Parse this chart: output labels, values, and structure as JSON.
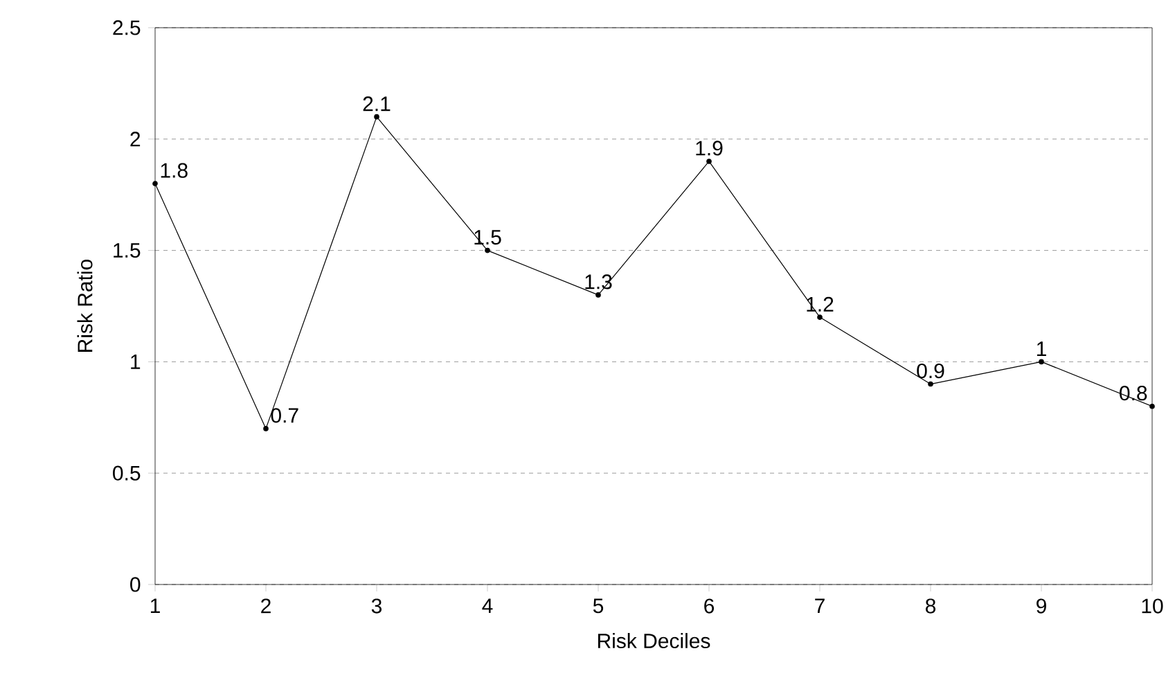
{
  "chart_data": {
    "type": "line",
    "xlabel": "Risk Deciles",
    "ylabel": "Risk Ratio",
    "x": [
      1,
      2,
      3,
      4,
      5,
      6,
      7,
      8,
      9,
      10
    ],
    "values": [
      1.8,
      0.7,
      2.1,
      1.5,
      1.3,
      1.9,
      1.2,
      0.9,
      1,
      0.8
    ],
    "color": "#000000",
    "xlim": [
      1,
      10
    ],
    "xticks": [
      1,
      2,
      3,
      4,
      5,
      6,
      7,
      8,
      9,
      10
    ],
    "ylim": [
      0,
      2.5
    ],
    "yticks": [
      0,
      0.5,
      1,
      1.5,
      2,
      2.5
    ],
    "grid": "y",
    "marker": "circle",
    "line_style": "solid",
    "data_labels": true
  }
}
